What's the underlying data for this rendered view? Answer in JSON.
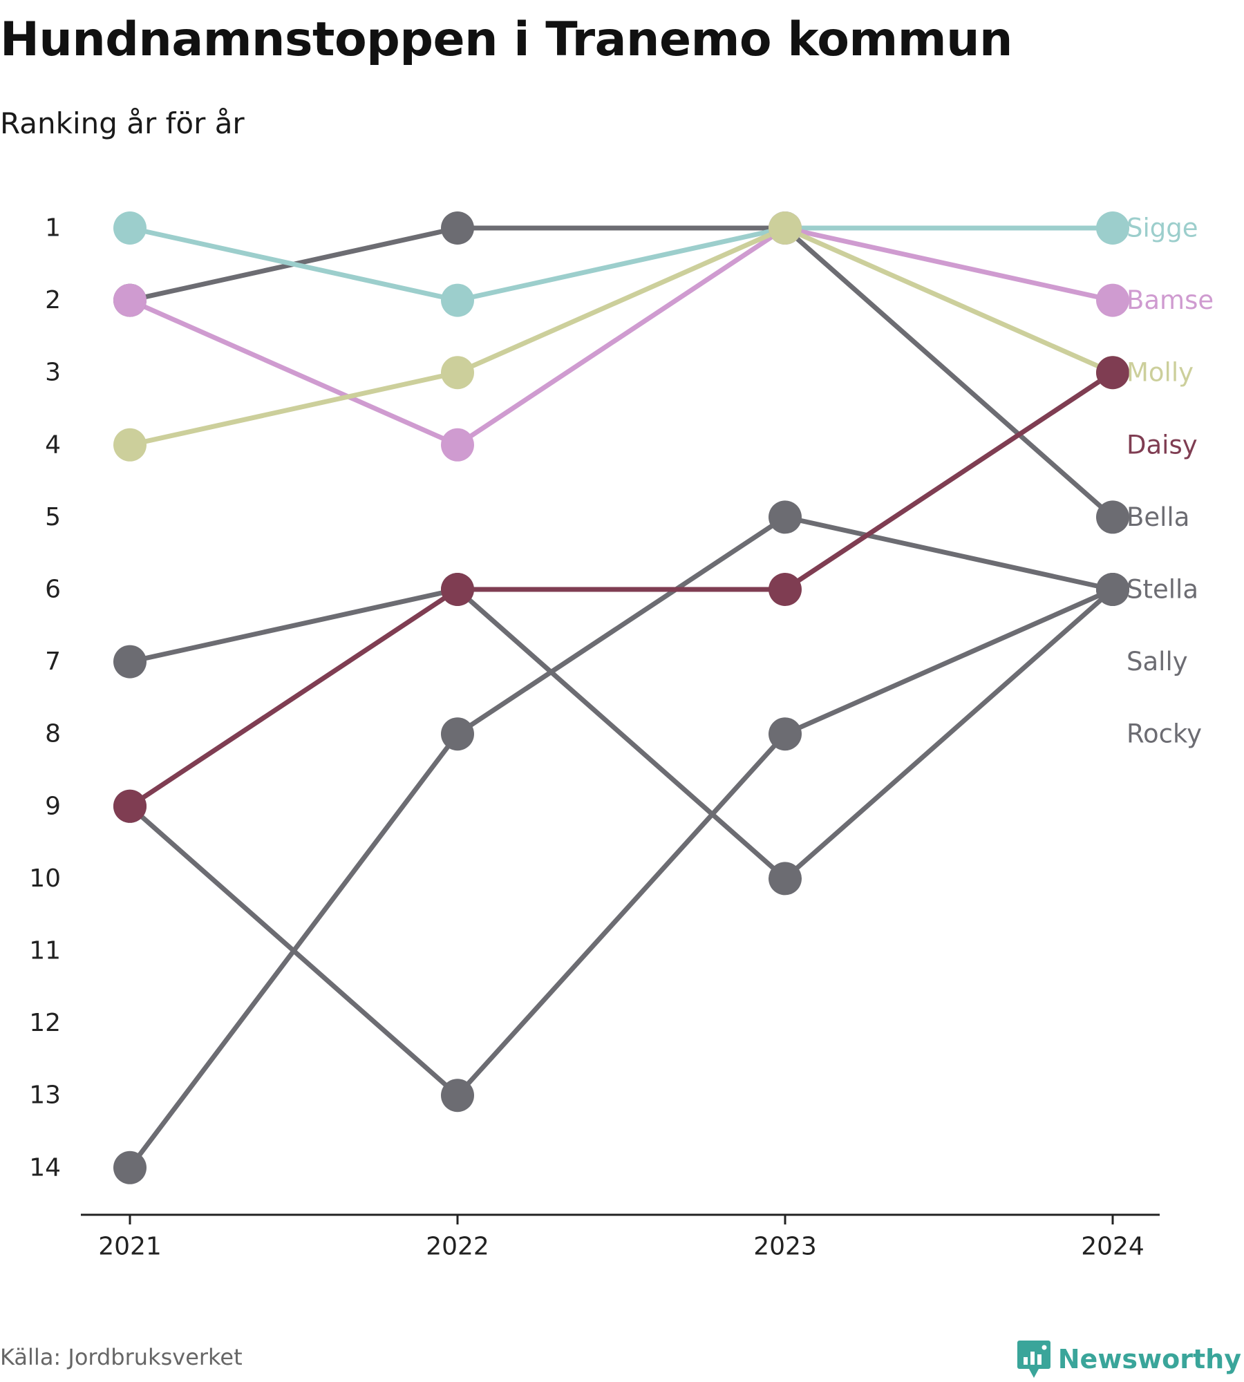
{
  "title": "Hundnamnstoppen i Tranemo kommun",
  "subtitle": "Ranking år för år",
  "source": "Källa: Jordbruksverket",
  "brand": {
    "name": "Newsworthy",
    "icon": "newsworthy-chart-bubble-icon",
    "color": "#3aa59a"
  },
  "chart_data": {
    "type": "line",
    "subtype": "bump",
    "x": [
      "2021",
      "2022",
      "2023",
      "2024"
    ],
    "y_axis": {
      "reversed": true,
      "ylim": [
        1,
        14
      ],
      "ticks": [
        1,
        2,
        3,
        4,
        5,
        6,
        7,
        8,
        9,
        10,
        11,
        12,
        13,
        14
      ]
    },
    "grid": false,
    "legend": "inline-right",
    "series": [
      {
        "name": "Sigge",
        "color": "#9ccecc",
        "values": [
          1,
          2,
          1,
          1
        ]
      },
      {
        "name": "Bamse",
        "color": "#cf9bd0",
        "values": [
          2,
          4,
          1,
          2
        ]
      },
      {
        "name": "Molly",
        "color": "#cccf9b",
        "values": [
          4,
          3,
          1,
          3
        ]
      },
      {
        "name": "Daisy",
        "color": "#7f3d52",
        "values": [
          9,
          6,
          6,
          3
        ]
      },
      {
        "name": "Bella",
        "color": "#6c6c72",
        "values": [
          2,
          1,
          1,
          5
        ]
      },
      {
        "name": "Stella",
        "color": "#6c6c72",
        "values": [
          7,
          6,
          10,
          6
        ]
      },
      {
        "name": "Sally",
        "color": "#6c6c72",
        "values": [
          9,
          13,
          8,
          6
        ]
      },
      {
        "name": "Rocky",
        "color": "#6c6c72",
        "values": [
          14,
          8,
          5,
          6
        ]
      }
    ]
  }
}
